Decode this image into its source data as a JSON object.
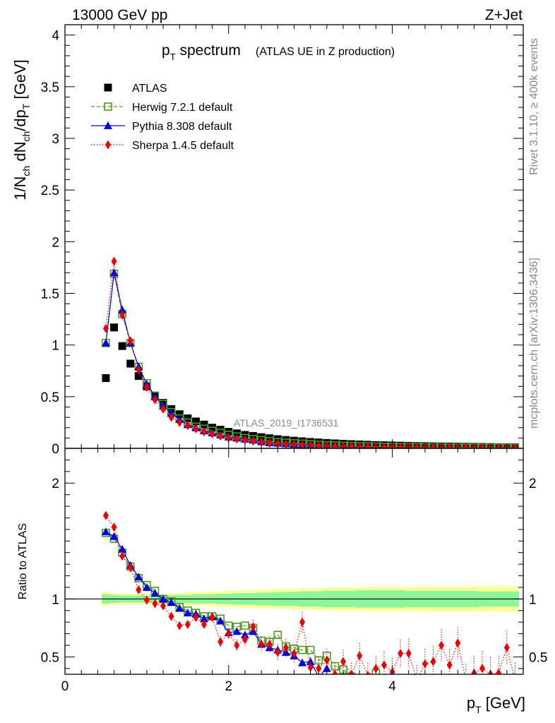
{
  "header": {
    "energy_label": "13000 GeV pp",
    "process_label": "Z+Jet"
  },
  "side_labels": {
    "rivet": "Rivet 3.1.10, ≥ 400k events",
    "mcplots": "mcplots.cern.ch [arXiv:1306.3436]"
  },
  "colors": {
    "data": "#000000",
    "herwig": "#4a9a1e",
    "pythia": "#0000dd",
    "sherpa": "#ee0000",
    "band_inner": "#8ff59a",
    "band_outer": "#ffff99"
  },
  "chart_data": {
    "type": "scatter",
    "title_main": "p",
    "title_sub": "T",
    "title_rest": " spectrum",
    "title_note": "(ATLAS UE in Z production)",
    "watermark": "ATLAS_2019_I1736531",
    "xlabel": "p",
    "xlabel_sub": "T",
    "xlabel_unit": " [GeV]",
    "ylabel": "1/N_ch dN_ch/dp_T [GeV]",
    "ratio_ylabel": "Ratio to ATLAS",
    "xlim": [
      0,
      5.6
    ],
    "ylim": [
      0,
      4.1
    ],
    "ratio_ylim": [
      0.35,
      2.3
    ],
    "x_ticks": [
      0,
      2,
      4
    ],
    "y_ticks": [
      0,
      0.5,
      1,
      1.5,
      2,
      2.5,
      3,
      3.5,
      4
    ],
    "ratio_ticks": [
      0.5,
      1,
      2
    ],
    "legend": [
      {
        "key": "data",
        "label": "ATLAS",
        "marker": "square"
      },
      {
        "key": "herwig",
        "label": "Herwig 7.2.1 default",
        "marker": "open-square",
        "dash": "dashed"
      },
      {
        "key": "pythia",
        "label": "Pythia 8.308 default",
        "marker": "triangle",
        "dash": "solid"
      },
      {
        "key": "sherpa",
        "label": "Sherpa 1.4.5 default",
        "marker": "diamond",
        "dash": "dotted"
      }
    ],
    "x": [
      0.5,
      0.6,
      0.7,
      0.8,
      0.9,
      1.0,
      1.1,
      1.2,
      1.3,
      1.4,
      1.5,
      1.6,
      1.7,
      1.8,
      1.9,
      2.0,
      2.1,
      2.2,
      2.3,
      2.4,
      2.5,
      2.6,
      2.7,
      2.8,
      2.9,
      3.0,
      3.1,
      3.2,
      3.3,
      3.4,
      3.5,
      3.6,
      3.7,
      3.8,
      3.9,
      4.0,
      4.1,
      4.2,
      4.3,
      4.4,
      4.5,
      4.6,
      4.7,
      4.8,
      4.9,
      5.0,
      5.1,
      5.2,
      5.3,
      5.4,
      5.5
    ],
    "data_values": [
      0.68,
      1.17,
      0.99,
      0.82,
      0.7,
      0.6,
      0.51,
      0.44,
      0.38,
      0.33,
      0.29,
      0.26,
      0.23,
      0.2,
      0.18,
      0.16,
      0.145,
      0.13,
      0.12,
      0.108,
      0.098,
      0.089,
      0.081,
      0.074,
      0.068,
      0.062,
      0.057,
      0.052,
      0.048,
      0.044,
      0.041,
      0.038,
      0.035,
      0.032,
      0.03,
      0.028,
      0.026,
      0.024,
      0.022,
      0.021,
      0.019,
      0.018,
      0.017,
      0.016,
      0.015,
      0.014,
      0.013,
      0.012,
      0.011,
      0.01,
      0.01
    ],
    "ratio_x": [
      0.5,
      0.6,
      0.7,
      0.8,
      0.9,
      1.0,
      1.1,
      1.2,
      1.3,
      1.4,
      1.5,
      1.6,
      1.7,
      1.8,
      1.9,
      2.0,
      2.1,
      2.2,
      2.3,
      2.4,
      2.5,
      2.6,
      2.7,
      2.8,
      2.9,
      3.0,
      3.1,
      3.2,
      3.3,
      3.4,
      3.5,
      3.6,
      3.7,
      3.8,
      3.9,
      4.0,
      4.1,
      4.2,
      4.3,
      4.4,
      4.5,
      4.6,
      4.7,
      4.8,
      4.9,
      5.0,
      5.1,
      5.2,
      5.3,
      5.4,
      5.5
    ],
    "band_inner_half": [
      0.04,
      0.035,
      0.03,
      0.03,
      0.03,
      0.03,
      0.03,
      0.03,
      0.03,
      0.035,
      0.035,
      0.04,
      0.04,
      0.04,
      0.045,
      0.045,
      0.05,
      0.05,
      0.05,
      0.055,
      0.055,
      0.06,
      0.06,
      0.06,
      0.065,
      0.065,
      0.065,
      0.07,
      0.07,
      0.07,
      0.07,
      0.075,
      0.075,
      0.075,
      0.075,
      0.075,
      0.075,
      0.07,
      0.07,
      0.07,
      0.07,
      0.07,
      0.07,
      0.07,
      0.07,
      0.07,
      0.065,
      0.065,
      0.065,
      0.065,
      0.065
    ],
    "band_outer_half": [
      0.06,
      0.05,
      0.045,
      0.045,
      0.045,
      0.045,
      0.045,
      0.045,
      0.05,
      0.05,
      0.055,
      0.06,
      0.06,
      0.065,
      0.065,
      0.07,
      0.07,
      0.075,
      0.075,
      0.08,
      0.08,
      0.085,
      0.085,
      0.09,
      0.09,
      0.09,
      0.095,
      0.095,
      0.1,
      0.1,
      0.1,
      0.1,
      0.105,
      0.105,
      0.105,
      0.105,
      0.105,
      0.105,
      0.105,
      0.11,
      0.11,
      0.11,
      0.11,
      0.11,
      0.11,
      0.11,
      0.11,
      0.11,
      0.11,
      0.11,
      0.11
    ],
    "series": [
      {
        "name": "Herwig 7.2.1 default",
        "key": "herwig",
        "x": [
          0.5,
          0.6,
          0.7,
          0.8,
          0.9,
          1.0,
          1.1,
          1.2,
          1.3,
          1.4,
          1.5,
          1.6,
          1.7,
          1.8,
          1.9,
          2.0,
          2.1,
          2.2,
          2.3,
          2.4,
          2.5,
          2.6,
          2.7,
          2.8,
          2.9,
          3.0,
          3.1,
          3.2,
          3.3,
          3.4,
          3.5,
          3.6,
          3.7,
          3.8,
          3.9,
          4.0,
          4.1,
          4.2,
          4.3,
          4.4,
          4.5,
          4.6,
          4.7,
          4.8,
          4.9,
          5.0,
          5.1,
          5.2,
          5.3,
          5.4,
          5.5
        ],
        "values": [
          1.02,
          1.69,
          1.3,
          1.02,
          0.79,
          0.63,
          0.51,
          0.43,
          0.35,
          0.29,
          0.25,
          0.21,
          0.19,
          0.17,
          0.15,
          0.13,
          0.115,
          0.1,
          0.09,
          0.08,
          0.07,
          0.06,
          0.055,
          0.05,
          0.045,
          0.04,
          0.035,
          0.03,
          0.028,
          0.025,
          0.023,
          0.021,
          0.019,
          0.017,
          0.015,
          0.014,
          0.013,
          0.012,
          0.011,
          0.01,
          0.009,
          0.008,
          0.007,
          0.007,
          0.006,
          0.006,
          0.005,
          0.005,
          0.005,
          0.004,
          0.004
        ],
        "ratio": [
          1.57,
          1.52,
          1.4,
          1.28,
          1.18,
          1.12,
          1.07,
          1.0,
          0.98,
          0.93,
          0.9,
          0.88,
          0.85,
          0.85,
          0.83,
          0.77,
          0.76,
          0.77,
          0.75,
          0.64,
          0.63,
          0.69,
          0.59,
          0.57,
          0.56,
          0.56,
          0.47,
          0.51,
          0.42,
          0.39,
          0.33,
          null,
          null,
          0.36,
          null,
          null,
          null,
          null,
          null,
          null,
          null,
          null,
          null,
          null,
          null,
          null,
          null,
          null,
          null,
          null,
          null
        ]
      },
      {
        "name": "Pythia 8.308 default",
        "key": "pythia",
        "x": [
          0.5,
          0.6,
          0.7,
          0.8,
          0.9,
          1.0,
          1.1,
          1.2,
          1.3,
          1.4,
          1.5,
          1.6,
          1.7,
          1.8,
          1.9,
          2.0,
          2.1,
          2.2,
          2.3,
          2.4,
          2.5,
          2.6,
          2.7,
          2.8,
          2.9,
          3.0,
          3.1,
          3.2,
          3.3,
          3.4,
          3.5,
          3.6,
          3.7,
          3.8,
          3.9,
          4.0,
          4.1,
          4.2,
          4.3,
          4.4,
          4.5,
          4.6,
          4.7,
          4.8,
          4.9,
          5.0,
          5.1,
          5.2,
          5.3,
          5.4,
          5.5
        ],
        "values": [
          1.02,
          1.7,
          1.34,
          1.02,
          0.79,
          0.62,
          0.5,
          0.41,
          0.34,
          0.28,
          0.23,
          0.2,
          0.17,
          0.15,
          0.13,
          0.11,
          0.1,
          0.09,
          0.08,
          0.065,
          0.055,
          0.05,
          0.045,
          0.04,
          0.035,
          0.03,
          0.025,
          0.022,
          0.019,
          0.016,
          0.014,
          0.012,
          0.01,
          0.009,
          0.008,
          0.007,
          0.006,
          0.005,
          0.005,
          0.004,
          0.004,
          0.003,
          0.003,
          0.003,
          0.002,
          0.002,
          0.002,
          0.002,
          0.002,
          0.002,
          0.002
        ],
        "ratio": [
          1.58,
          1.54,
          1.43,
          1.29,
          1.19,
          1.1,
          1.05,
          1.0,
          0.97,
          0.92,
          0.88,
          0.87,
          0.83,
          0.85,
          0.81,
          0.71,
          0.72,
          0.69,
          0.72,
          0.61,
          0.58,
          0.56,
          0.54,
          0.51,
          0.45,
          0.46,
          0.33,
          0.4,
          null,
          null,
          null,
          null,
          null,
          null,
          null,
          null,
          null,
          null,
          null,
          null,
          null,
          null,
          null,
          null,
          null,
          null,
          null,
          null,
          null,
          null,
          null
        ]
      },
      {
        "name": "Sherpa 1.4.5 default",
        "key": "sherpa",
        "x": [
          0.5,
          0.6,
          0.7,
          0.8,
          0.9,
          1.0,
          1.1,
          1.2,
          1.3,
          1.4,
          1.5,
          1.6,
          1.7,
          1.8,
          1.9,
          2.0,
          2.1,
          2.2,
          2.3,
          2.4,
          2.5,
          2.6,
          2.7,
          2.8,
          2.9,
          3.0,
          3.1,
          3.2,
          3.3,
          3.4,
          3.5,
          3.6,
          3.7,
          3.8,
          3.9,
          4.0,
          4.1,
          4.2,
          4.3,
          4.4,
          4.5,
          4.6,
          4.7,
          4.8,
          4.9,
          5.0,
          5.1,
          5.2,
          5.3,
          5.4,
          5.5
        ],
        "values": [
          1.16,
          1.81,
          1.29,
          1.04,
          0.76,
          0.59,
          0.47,
          0.38,
          0.3,
          0.25,
          0.22,
          0.19,
          0.16,
          0.14,
          0.12,
          0.1,
          0.09,
          0.08,
          0.07,
          0.06,
          0.05,
          0.045,
          0.04,
          0.035,
          0.03,
          0.028,
          0.025,
          0.022,
          0.02,
          0.018,
          0.016,
          0.015,
          0.013,
          0.012,
          0.011,
          0.01,
          0.009,
          0.008,
          0.008,
          0.007,
          0.006,
          0.006,
          0.005,
          0.005,
          0.004,
          0.004,
          0.004,
          0.004,
          0.003,
          0.003,
          0.003
        ],
        "ratio": [
          1.72,
          1.62,
          1.37,
          1.27,
          1.08,
          0.99,
          0.96,
          0.94,
          0.85,
          0.77,
          0.78,
          0.84,
          0.78,
          0.84,
          0.63,
          0.7,
          0.6,
          0.65,
          0.76,
          0.61,
          0.61,
          0.54,
          0.58,
          0.53,
          0.8,
          0.41,
          0.4,
          0.47,
          0.35,
          0.46,
          0.35,
          0.51,
          0.34,
          0.4,
          0.43,
          0.37,
          0.53,
          0.53,
          0.3,
          0.44,
          0.46,
          0.6,
          0.43,
          0.62,
          0.3,
          0.36,
          0.4,
          0.35,
          0.36,
          0.58,
          0.3
        ],
        "ratio_err": [
          0.02,
          0.02,
          0.02,
          0.02,
          0.02,
          0.02,
          0.03,
          0.03,
          0.03,
          0.03,
          0.03,
          0.04,
          0.04,
          0.04,
          0.05,
          0.05,
          0.05,
          0.06,
          0.06,
          0.06,
          0.07,
          0.07,
          0.08,
          0.08,
          0.09,
          0.09,
          0.1,
          0.1,
          0.1,
          0.1,
          0.1,
          0.11,
          0.11,
          0.11,
          0.12,
          0.12,
          0.12,
          0.13,
          0.13,
          0.13,
          0.13,
          0.14,
          0.14,
          0.14,
          0.14,
          0.15,
          0.15,
          0.15,
          0.15,
          0.15,
          0.15
        ]
      }
    ]
  }
}
